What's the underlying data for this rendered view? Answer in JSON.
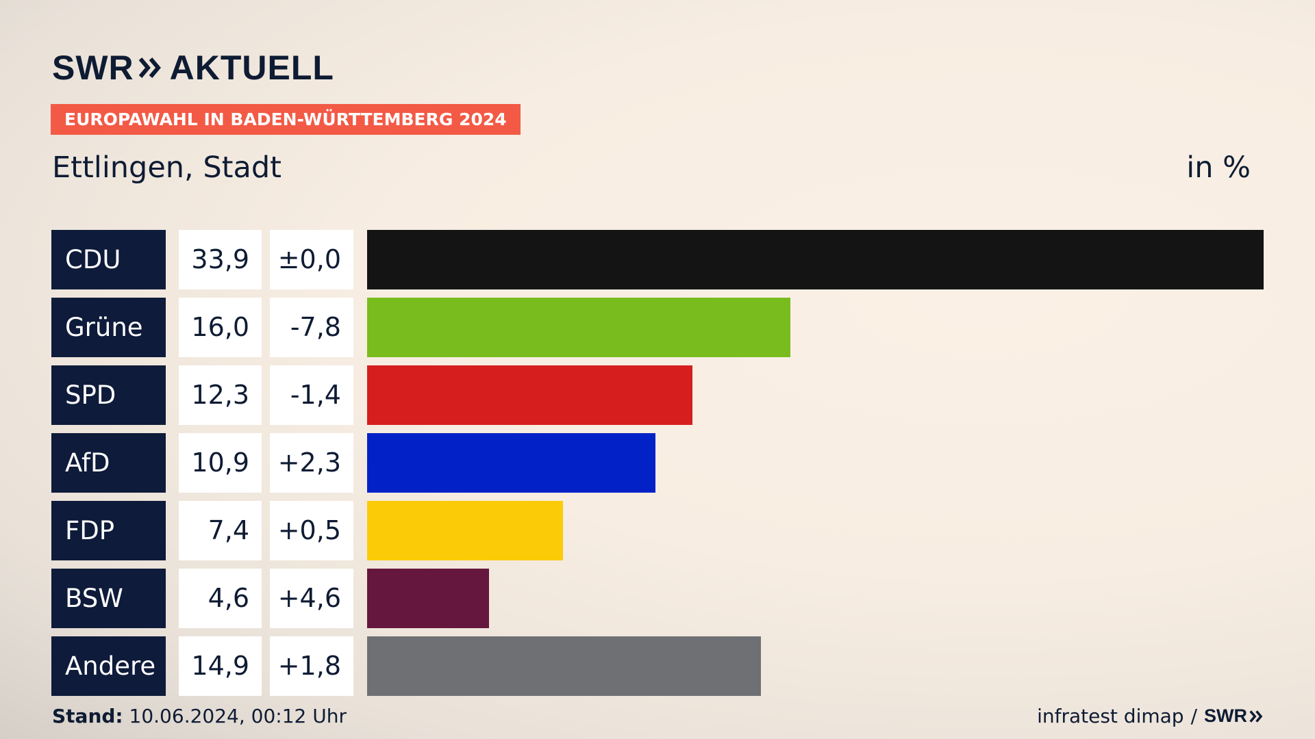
{
  "brand": {
    "logo_left": "SWR",
    "logo_right": "AKTUELL"
  },
  "badge": "EUROPAWAHL IN BADEN-WÜRTTEMBERG 2024",
  "place": "Ettlingen, Stadt",
  "unit": "in %",
  "footer": {
    "stand_label": "Stand:",
    "stand_value": "10.06.2024, 00:12 Uhr",
    "source": "infratest dimap",
    "separator": "/",
    "source_logo": "SWR"
  },
  "colors": {
    "navy": "#0e1b3a",
    "badge": "#f25a46"
  },
  "chart_data": {
    "type": "bar",
    "orientation": "horizontal",
    "xlim": [
      0,
      33.9
    ],
    "categories": [
      "CDU",
      "Grüne",
      "SPD",
      "AfD",
      "FDP",
      "BSW",
      "Andere"
    ],
    "values": [
      33.9,
      16.0,
      12.3,
      10.9,
      7.4,
      4.6,
      14.9
    ],
    "value_labels": [
      "33,9",
      "16,0",
      "12,3",
      "10,9",
      "7,4",
      "4,6",
      "14,9"
    ],
    "diff_labels": [
      "±0,0",
      "-7,8",
      "-1,4",
      "+2,3",
      "+0,5",
      "+4,6",
      "+1,8"
    ],
    "colors": [
      "#141414",
      "#79bc1e",
      "#d61e1e",
      "#0222c8",
      "#fccb08",
      "#66173d",
      "#6f7073"
    ]
  }
}
